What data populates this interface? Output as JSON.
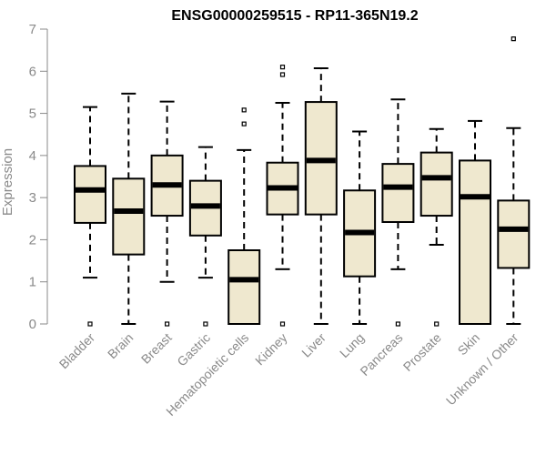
{
  "chart_data": {
    "type": "boxplot",
    "title": "ENSG00000259515 - RP11-365N19.2",
    "xlabel": "",
    "ylabel": "Expression",
    "ylim": [
      0,
      7
    ],
    "yticks": [
      0,
      1,
      2,
      3,
      4,
      5,
      6,
      7
    ],
    "box_fill": "#efe8cf",
    "categories": [
      "Bladder",
      "Brain",
      "Breast",
      "Gastric",
      "Hematopoietic cells",
      "Kidney",
      "Liver",
      "Lung",
      "Pancreas",
      "Prostate",
      "Skin",
      "Unknown / Other"
    ],
    "boxes": [
      {
        "min": 1.1,
        "q1": 2.4,
        "median": 3.18,
        "q3": 3.75,
        "max": 5.15,
        "outliers": [
          0.0
        ]
      },
      {
        "min": 0.0,
        "q1": 1.65,
        "median": 2.68,
        "q3": 3.45,
        "max": 5.47,
        "outliers": []
      },
      {
        "min": 1.0,
        "q1": 2.57,
        "median": 3.3,
        "q3": 4.0,
        "max": 5.28,
        "outliers": [
          0.0
        ]
      },
      {
        "min": 1.1,
        "q1": 2.1,
        "median": 2.8,
        "q3": 3.4,
        "max": 4.2,
        "outliers": [
          0.0
        ]
      },
      {
        "min": 0.0,
        "q1": 0.0,
        "median": 1.05,
        "q3": 1.75,
        "max": 4.13,
        "outliers": [
          4.75,
          5.08
        ]
      },
      {
        "min": 1.3,
        "q1": 2.6,
        "median": 3.23,
        "q3": 3.83,
        "max": 5.25,
        "outliers": [
          0.0,
          5.92,
          6.1
        ]
      },
      {
        "min": 0.0,
        "q1": 2.6,
        "median": 3.88,
        "q3": 5.27,
        "max": 6.07,
        "outliers": []
      },
      {
        "min": 0.0,
        "q1": 1.13,
        "median": 2.17,
        "q3": 3.17,
        "max": 4.57,
        "outliers": []
      },
      {
        "min": 1.3,
        "q1": 2.42,
        "median": 3.25,
        "q3": 3.8,
        "max": 5.33,
        "outliers": [
          0.0
        ]
      },
      {
        "min": 1.88,
        "q1": 2.57,
        "median": 3.47,
        "q3": 4.07,
        "max": 4.63,
        "outliers": [
          0.0
        ]
      },
      {
        "min": 0.0,
        "q1": 0.0,
        "median": 3.02,
        "q3": 3.88,
        "max": 4.82,
        "outliers": []
      },
      {
        "min": 0.0,
        "q1": 1.33,
        "median": 2.25,
        "q3": 2.93,
        "max": 4.65,
        "outliers": [
          6.77
        ]
      }
    ]
  }
}
